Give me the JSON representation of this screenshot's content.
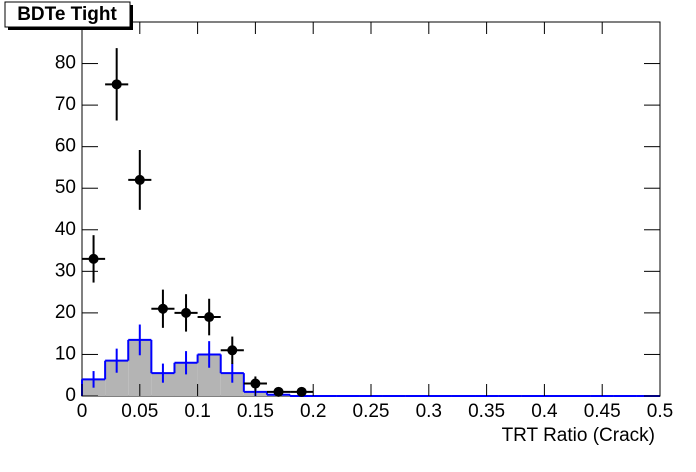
{
  "chart_data": {
    "type": "histogram",
    "title": "BDTe Tight",
    "x_label": "TRT Ratio (Crack)",
    "xlim": [
      0,
      0.5
    ],
    "ylim": [
      0,
      90
    ],
    "xticks": [
      0,
      0.05,
      0.1,
      0.15,
      0.2,
      0.25,
      0.3,
      0.35,
      0.4,
      0.45,
      0.5
    ],
    "yticks": [
      0,
      10,
      20,
      30,
      40,
      50,
      60,
      70,
      80
    ],
    "bins": [
      0,
      0.02,
      0.04,
      0.06,
      0.08,
      0.1,
      0.12,
      0.14,
      0.16,
      0.18,
      0.2,
      0.22,
      0.24,
      0.26,
      0.28,
      0.3,
      0.32,
      0.34,
      0.36,
      0.38,
      0.4,
      0.42,
      0.44,
      0.46,
      0.48,
      0.5
    ],
    "series": [
      {
        "type": "histogram",
        "color": "#0000ff",
        "fill": "#b4b4b4",
        "values": [
          4,
          8.5,
          13.5,
          5.5,
          8,
          10,
          5.5,
          1,
          0.3,
          0,
          0,
          0,
          0,
          0,
          0,
          0,
          0,
          0,
          0,
          0,
          0,
          0,
          0,
          0,
          0
        ],
        "errors": [
          2,
          2.9,
          3.7,
          2.3,
          2.8,
          3.2,
          2.3,
          1,
          0.5,
          0,
          0,
          0,
          0,
          0,
          0,
          0,
          0,
          0,
          0,
          0,
          0,
          0,
          0,
          0,
          0
        ]
      },
      {
        "type": "points",
        "color": "#000000",
        "x": [
          0.01,
          0.03,
          0.05,
          0.07,
          0.09,
          0.11,
          0.13,
          0.15,
          0.17,
          0.19
        ],
        "values": [
          33,
          75,
          52,
          21,
          20,
          19,
          11,
          3,
          1,
          1
        ],
        "errors": [
          5.7,
          8.7,
          7.2,
          4.6,
          4.5,
          4.4,
          3.3,
          1.7,
          1,
          1
        ]
      }
    ]
  }
}
